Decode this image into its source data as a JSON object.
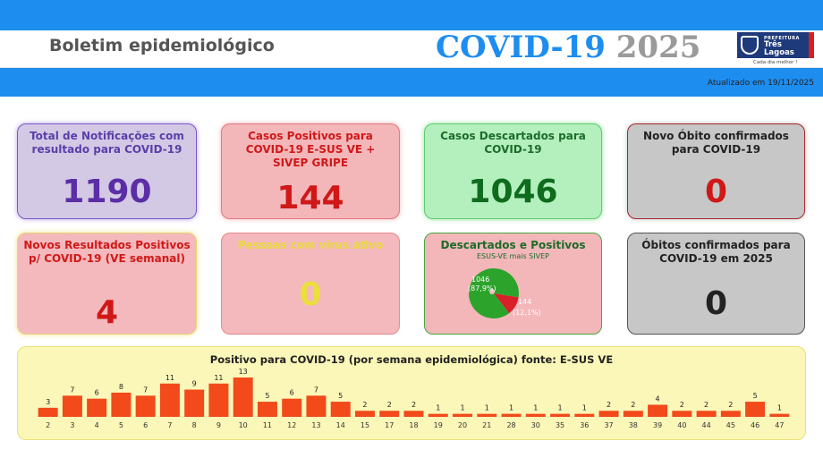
{
  "header": {
    "title": "Boletim epidemiológico",
    "covid_text": "COVID-19",
    "year_text": "2025",
    "updated": "Atualizado em 19/11/2025"
  },
  "logo": {
    "prefix": "PREFEITURA",
    "name": "Três Lagoas",
    "tagline": "Cada dia melhor !"
  },
  "cards": {
    "total": {
      "label": "Total de Notificações com resultado para COVID-19",
      "value": "1190"
    },
    "positivos": {
      "label": "Casos Positivos para COVID-19 E-SUS VE + SIVEP GRIPE",
      "value": "144"
    },
    "descartados": {
      "label": "Casos Descartados para COVID-19",
      "value": "1046"
    },
    "novo_obito": {
      "label": "Novo Óbito confirmados para COVID-19",
      "value": "0"
    },
    "novos_resultados": {
      "label": "Novos Resultados Positivos p/ COVID-19 (VE semanal)",
      "value": "4"
    },
    "ativos": {
      "label": "Pessoas com vírus ativo",
      "value": "0"
    },
    "pie": {
      "label": "Descartados e Positivos",
      "subtitle": "ESUS-VE mais SIVEP",
      "slice1_value": "1046",
      "slice1_pct": "(87,9%)",
      "slice2_value": "144",
      "slice2_pct": "(12,1%)"
    },
    "obitos_2025": {
      "label": "Óbitos confirmados para COVID-19 em 2025",
      "value": "0"
    }
  },
  "colors": {
    "accent_blue": "#1e8df0",
    "bar": "#f24a1a",
    "pie_green": "#2ca42c",
    "pie_red": "#d8202a"
  },
  "chart_data": [
    {
      "type": "pie",
      "title": "Descartados e Positivos",
      "subtitle": "ESUS-VE mais SIVEP",
      "slices": [
        {
          "label": "Descartados",
          "value": 1046,
          "percent": 87.9
        },
        {
          "label": "Positivos",
          "value": 144,
          "percent": 12.1
        }
      ]
    },
    {
      "type": "bar",
      "title": "Positivo para COVID-19 (por semana epidemiológica) fonte: E-SUS VE",
      "categories": [
        "2",
        "3",
        "4",
        "5",
        "6",
        "7",
        "8",
        "9",
        "10",
        "11",
        "12",
        "13",
        "14",
        "15",
        "17",
        "18",
        "19",
        "20",
        "21",
        "28",
        "30",
        "35",
        "36",
        "37",
        "38",
        "39",
        "40",
        "44",
        "45",
        "46",
        "47"
      ],
      "values": [
        3,
        7,
        6,
        8,
        7,
        11,
        9,
        11,
        13,
        5,
        6,
        7,
        5,
        2,
        2,
        2,
        1,
        1,
        1,
        1,
        1,
        1,
        1,
        2,
        2,
        4,
        2,
        2,
        2,
        5,
        1
      ],
      "ylim": [
        0,
        13
      ],
      "grid": false
    }
  ]
}
